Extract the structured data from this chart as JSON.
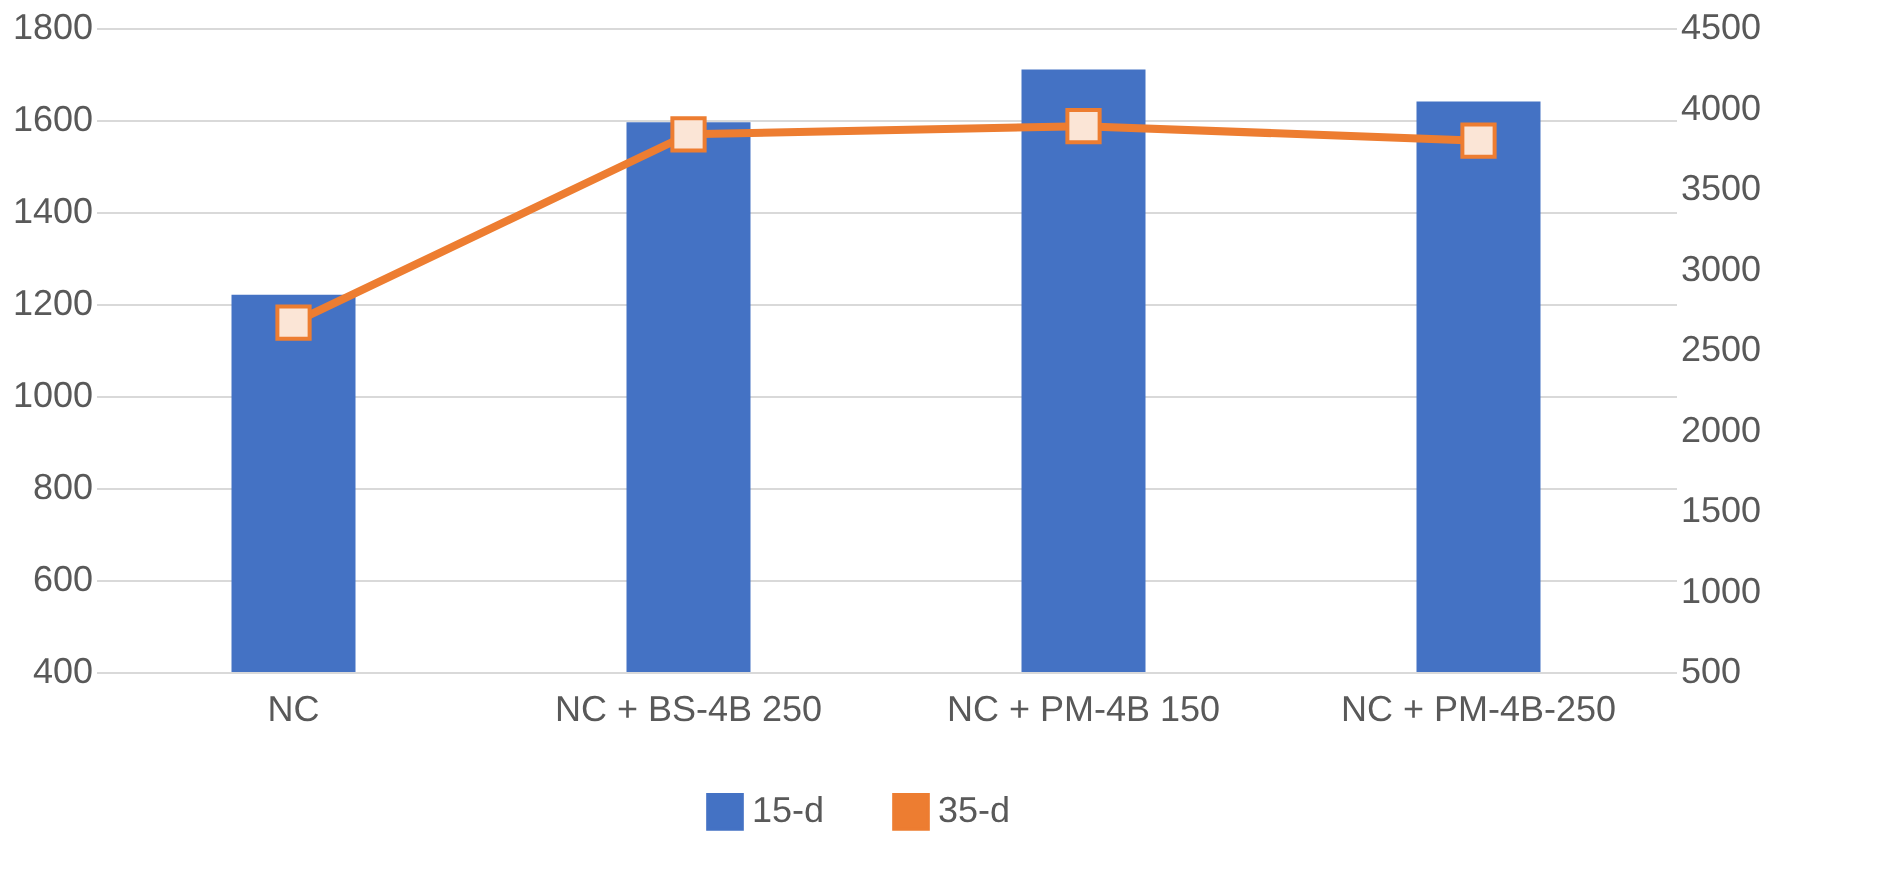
{
  "chart_data": {
    "type": "bar",
    "categories": [
      "NC",
      "NC + BS-4B 250",
      "NC + PM-4B 150",
      "NC + PM-4B-250"
    ],
    "series": [
      {
        "name": "15-d",
        "color": "#4472c4",
        "values": [
          1220,
          1595,
          1710,
          1640
        ]
      },
      {
        "name": "35-d",
        "color": "#ed7d31",
        "type": "line",
        "axis": "y2",
        "values": [
          2670,
          3840,
          3890,
          3800
        ]
      }
    ],
    "ylim": [
      400,
      1800
    ],
    "yticks": [
      400,
      600,
      800,
      {
        "value": 1000,
        "label": "1000"
      },
      {
        "value": 1200,
        "label": "1200"
      },
      {
        "value": 1400,
        "label": "1400"
      },
      {
        "value": 1600,
        "label": "1600"
      },
      {
        "value": 1800,
        "label": "1800"
      }
    ],
    "y2lim": [
      500,
      4500
    ],
    "y2ticks": [
      500,
      {
        "value": 1000,
        "label": "1000"
      },
      {
        "value": 1500,
        "label": "1500"
      },
      {
        "value": 2000,
        "label": "2000"
      },
      {
        "value": 2500,
        "label": "2500"
      },
      {
        "value": 3000,
        "label": "3000"
      },
      {
        "value": 3500,
        "label": "3500"
      },
      {
        "value": 4000,
        "label": "4000"
      },
      {
        "value": 4500,
        "label": "4500"
      }
    ],
    "grid": "y",
    "legend": "bottom",
    "marker": "square",
    "line_style": "solid"
  }
}
